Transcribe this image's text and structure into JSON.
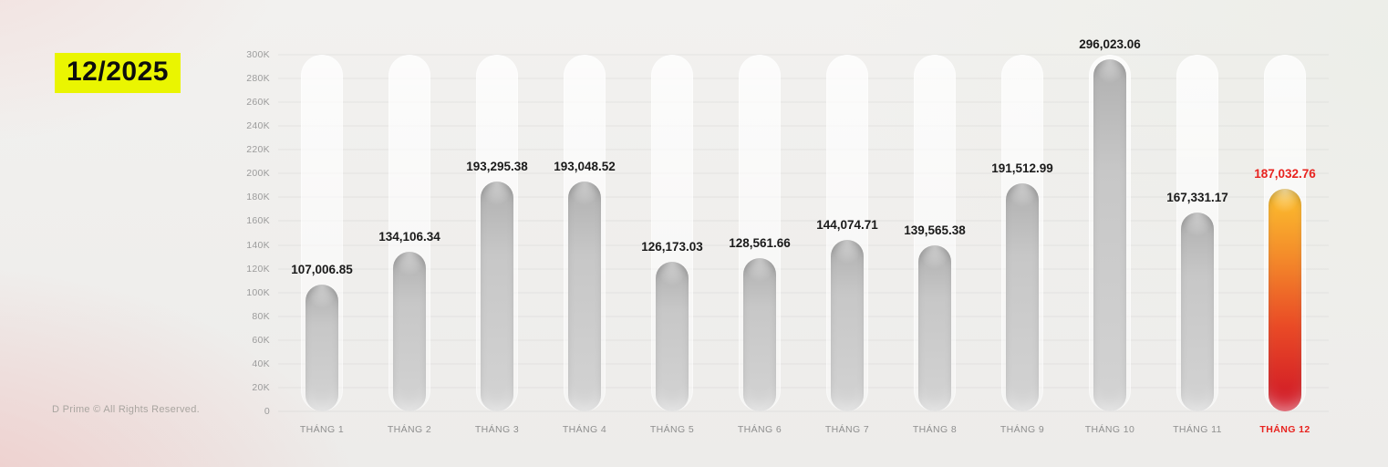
{
  "header": {
    "period": "12/2025",
    "highlight_color": "#eaf501"
  },
  "footer": {
    "copyright": "D Prime © All Rights Reserved."
  },
  "chart_data": {
    "type": "bar",
    "title": "",
    "xlabel": "",
    "ylabel": "",
    "categories": [
      "THÁNG 1",
      "THÁNG 2",
      "THÁNG 3",
      "THÁNG 4",
      "THÁNG 5",
      "THÁNG 6",
      "THÁNG 7",
      "THÁNG 8",
      "THÁNG 9",
      "THÁNG 10",
      "THÁNG 11",
      "THÁNG 12"
    ],
    "values": [
      107006.85,
      134106.34,
      193295.38,
      193048.52,
      126173.03,
      128561.66,
      144074.71,
      139565.38,
      191512.99,
      296023.06,
      167331.17,
      187032.76
    ],
    "value_labels": [
      "107,006.85",
      "134,106.34",
      "193,295.38",
      "193,048.52",
      "126,173.03",
      "128,561.66",
      "144,074.71",
      "139,565.38",
      "191,512.99",
      "296,023.06",
      "167,331.17",
      "187,032.76"
    ],
    "ylim": [
      0,
      300000
    ],
    "ytick_step": 20000,
    "ytick_labels": [
      "0",
      "20K",
      "40K",
      "60K",
      "80K",
      "100K",
      "120K",
      "140K",
      "160K",
      "180K",
      "200K",
      "220K",
      "240K",
      "260K",
      "280K",
      "300K"
    ],
    "grid": true,
    "legend": "none",
    "highlight_index": 11,
    "colors": {
      "bar_gray_top": "#b0b0b0",
      "bar_gray_bottom": "#d3d3d3",
      "highlight_top": "#fcc22e",
      "highlight_bottom": "#ce1527",
      "value_label": "#1a1a1a",
      "highlight_label": "#e8231f",
      "axis_text": "#9b9b9b"
    }
  }
}
